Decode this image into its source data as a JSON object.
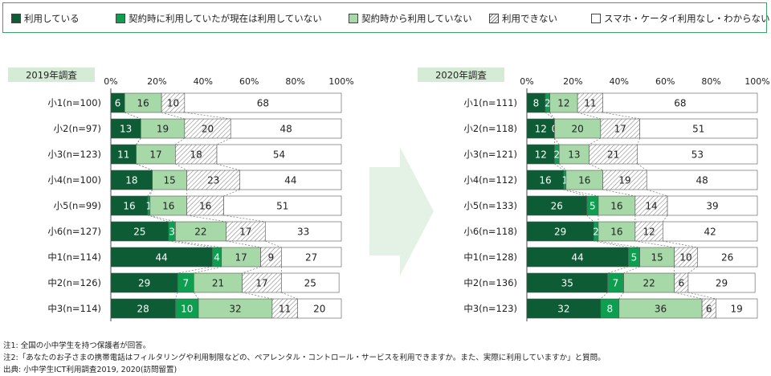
{
  "legend": [
    {
      "label": "利用している",
      "color": "#0d5c36",
      "pattern": false
    },
    {
      "label": "契約時に利用していたが現在は利用していない",
      "color": "#0e9e4f",
      "pattern": false
    },
    {
      "label": "契約時から利用していない",
      "color": "#a7d8a8",
      "pattern": false
    },
    {
      "label": "利用できない",
      "color": "#ffffff",
      "pattern": true
    },
    {
      "label": "スマホ・ケータイ利用なし・わからない",
      "color": "#ffffff",
      "pattern": false
    }
  ],
  "notes": [
    "注1: 全国の小中学生を持つ保護者が回答。",
    "注2:「あなたのお子さまの携帯電話はフィルタリングや利用制限などの、ペアレンタル・コントロール・サービスを利用できますか。また、実際に利用していますか」と質問。",
    "出典: 小中学生ICT利用調査2019, 2020(訪問留置)"
  ],
  "chart_data": [
    {
      "type": "bar",
      "stacked": true,
      "orientation": "horizontal",
      "title": "2019年調査",
      "xlim": [
        0,
        100
      ],
      "xticks": [
        "0%",
        "20%",
        "40%",
        "60%",
        "80%",
        "100%"
      ],
      "categories": [
        "小1(n=100)",
        "小2(n=97)",
        "小3(n=123)",
        "小4(n=100)",
        "小5(n=99)",
        "小6(n=127)",
        "中1(n=114)",
        "中2(n=126)",
        "中3(n=114)"
      ],
      "series": [
        {
          "name": "利用している",
          "values": [
            6,
            13,
            11,
            18,
            16,
            25,
            44,
            29,
            28
          ]
        },
        {
          "name": "契約時に利用していたが現在は利用していない",
          "values": [
            0,
            0,
            0,
            0,
            1,
            3,
            4,
            7,
            10
          ]
        },
        {
          "name": "契約時から利用していない",
          "values": [
            16,
            19,
            17,
            15,
            16,
            22,
            17,
            21,
            32
          ]
        },
        {
          "name": "利用できない",
          "values": [
            10,
            20,
            18,
            23,
            16,
            17,
            9,
            17,
            11
          ]
        },
        {
          "name": "スマホ・ケータイ利用なし・わからない",
          "values": [
            68,
            48,
            54,
            44,
            51,
            33,
            27,
            25,
            20
          ]
        }
      ]
    },
    {
      "type": "bar",
      "stacked": true,
      "orientation": "horizontal",
      "title": "2020年調査",
      "xlim": [
        0,
        100
      ],
      "xticks": [
        "0%",
        "20%",
        "40%",
        "60%",
        "80%",
        "100%"
      ],
      "categories": [
        "小1(n=111)",
        "小2(n=118)",
        "小3(n=121)",
        "小4(n=112)",
        "小5(n=133)",
        "小6(n=118)",
        "中1(n=128)",
        "中2(n=136)",
        "中3(n=123)"
      ],
      "series": [
        {
          "name": "利用している",
          "values": [
            8,
            12,
            12,
            16,
            26,
            29,
            44,
            35,
            32
          ]
        },
        {
          "name": "契約時に利用していたが現在は利用していない",
          "values": [
            2,
            0,
            2,
            1,
            5,
            2,
            5,
            7,
            8
          ]
        },
        {
          "name": "契約時から利用していない",
          "values": [
            12,
            20,
            13,
            16,
            16,
            16,
            15,
            22,
            36
          ]
        },
        {
          "name": "利用できない",
          "values": [
            11,
            17,
            21,
            19,
            14,
            12,
            10,
            6,
            6
          ]
        },
        {
          "name": "スマホ・ケータイ利用なし・わからない",
          "values": [
            68,
            51,
            53,
            48,
            39,
            42,
            26,
            29,
            19
          ]
        }
      ]
    }
  ]
}
